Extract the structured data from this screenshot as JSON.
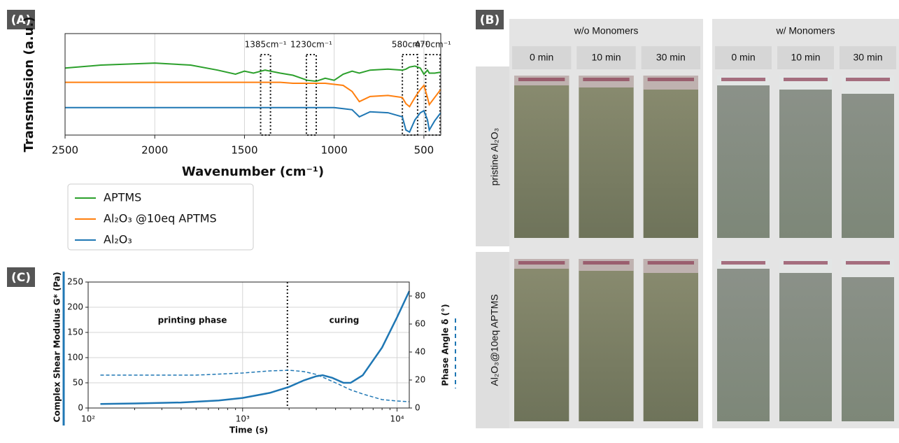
{
  "chart_data": [
    {
      "type": "line",
      "panel": "(A)",
      "xlabel": "Wavenumber (cm⁻¹)",
      "ylabel": "Transmission (a.u.)",
      "xlim": [
        2500,
        406
      ],
      "ylim": [
        0,
        1
      ],
      "xticks": [
        2500,
        2000,
        1500,
        1000,
        500
      ],
      "grid": "x",
      "x": [
        2500,
        2300,
        2000,
        1800,
        1650,
        1550,
        1500,
        1450,
        1385,
        1300,
        1230,
        1150,
        1100,
        1050,
        1000,
        950,
        900,
        860,
        800,
        700,
        620,
        600,
        580,
        550,
        520,
        500,
        480,
        470,
        440,
        406
      ],
      "series": [
        {
          "name": "APTMS",
          "color": "#2ca02c",
          "values": [
            0.66,
            0.69,
            0.71,
            0.69,
            0.64,
            0.6,
            0.63,
            0.61,
            0.64,
            0.61,
            0.59,
            0.54,
            0.53,
            0.56,
            0.54,
            0.6,
            0.63,
            0.61,
            0.64,
            0.65,
            0.64,
            0.65,
            0.67,
            0.68,
            0.66,
            0.6,
            0.64,
            0.61,
            0.61,
            0.62
          ]
        },
        {
          "name": "Al₂O₃ @10eq APTMS",
          "color": "#ff7f0e",
          "values": [
            0.52,
            0.52,
            0.52,
            0.52,
            0.52,
            0.52,
            0.52,
            0.52,
            0.52,
            0.52,
            0.51,
            0.51,
            0.51,
            0.51,
            0.5,
            0.49,
            0.43,
            0.33,
            0.38,
            0.39,
            0.37,
            0.31,
            0.28,
            0.37,
            0.45,
            0.49,
            0.37,
            0.3,
            0.37,
            0.45
          ]
        },
        {
          "name": "Al₂O₃",
          "color": "#1f77b4",
          "values": [
            0.27,
            0.27,
            0.27,
            0.27,
            0.27,
            0.27,
            0.27,
            0.27,
            0.27,
            0.27,
            0.27,
            0.27,
            0.27,
            0.27,
            0.27,
            0.26,
            0.25,
            0.18,
            0.23,
            0.22,
            0.18,
            0.05,
            0.03,
            0.15,
            0.22,
            0.24,
            0.15,
            0.05,
            0.14,
            0.22
          ]
        }
      ],
      "regions": [
        {
          "label": "1385cm⁻¹",
          "range": [
            1410,
            1355
          ]
        },
        {
          "label": "1230cm⁻¹",
          "range": [
            1155,
            1100
          ]
        },
        {
          "label": "580cm⁻¹",
          "range": [
            620,
            535
          ]
        },
        {
          "label": "470cm⁻¹",
          "range": [
            490,
            410
          ]
        }
      ]
    },
    {
      "type": "line",
      "panel": "(C)",
      "xlabel": "Time (s)",
      "ylabel": "Complex Shear Modulus G* (Pa)",
      "y2label": "Phase Angle δ (°)",
      "xscale": "log",
      "xlim": [
        100,
        12000
      ],
      "ylim": [
        0,
        250
      ],
      "y2lim": [
        0,
        90
      ],
      "xticks": [
        {
          "value": 100,
          "label": "10²"
        },
        {
          "value": 1000,
          "label": "10³"
        },
        {
          "value": 10000,
          "label": "10⁴"
        }
      ],
      "yticks": [
        0,
        50,
        100,
        150,
        200,
        250
      ],
      "y2ticks": [
        0,
        20,
        40,
        60,
        80
      ],
      "grid": true,
      "vline": 1950,
      "annotations": [
        "printing phase",
        "curing"
      ],
      "series": [
        {
          "color": "#1f77b4",
          "style": "solid",
          "x": [
            120,
            200,
            400,
            700,
            1000,
            1500,
            2000,
            2500,
            3000,
            3300,
            3800,
            4500,
            5000,
            6000,
            8000,
            10000,
            12000
          ],
          "values": [
            8,
            9,
            11,
            15,
            20,
            30,
            42,
            55,
            63,
            65,
            60,
            50,
            50,
            65,
            120,
            180,
            232
          ]
        },
        {
          "color": "#1f77b4",
          "style": "dashed",
          "axis": "y2",
          "x": [
            120,
            500,
            1000,
            1500,
            2000,
            2500,
            3000,
            4000,
            5000,
            6000,
            8000,
            10000,
            12000
          ],
          "values": [
            23.5,
            23.5,
            25,
            26.5,
            27,
            26,
            24,
            18,
            13,
            10,
            6,
            5,
            4.5
          ]
        }
      ]
    }
  ],
  "photo_panel": {
    "panel": "(B)",
    "groups": [
      {
        "title": "w/o Monomers",
        "times": [
          "0 min",
          "10 min",
          "30 min"
        ]
      },
      {
        "title": "w/ Monomers",
        "times": [
          "0 min",
          "10 min",
          "30 min"
        ]
      }
    ],
    "rows": [
      "pristine Al₂O₃",
      "Al₂O₃@10eq APTMS"
    ]
  }
}
